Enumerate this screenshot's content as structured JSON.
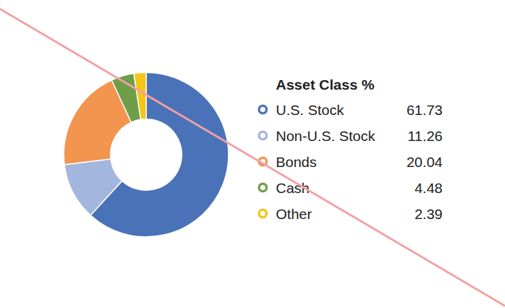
{
  "chart_data": {
    "type": "donut",
    "title": "Asset Class %",
    "categories": [
      "U.S. Stock",
      "Non-U.S. Stock",
      "Bonds",
      "Cash",
      "Other"
    ],
    "values": [
      61.73,
      11.26,
      20.04,
      4.48,
      2.39
    ],
    "colors": [
      "#4a72b8",
      "#a3b6dd",
      "#f2954f",
      "#6f9e4b",
      "#f5c518"
    ],
    "legend": "right"
  }
}
